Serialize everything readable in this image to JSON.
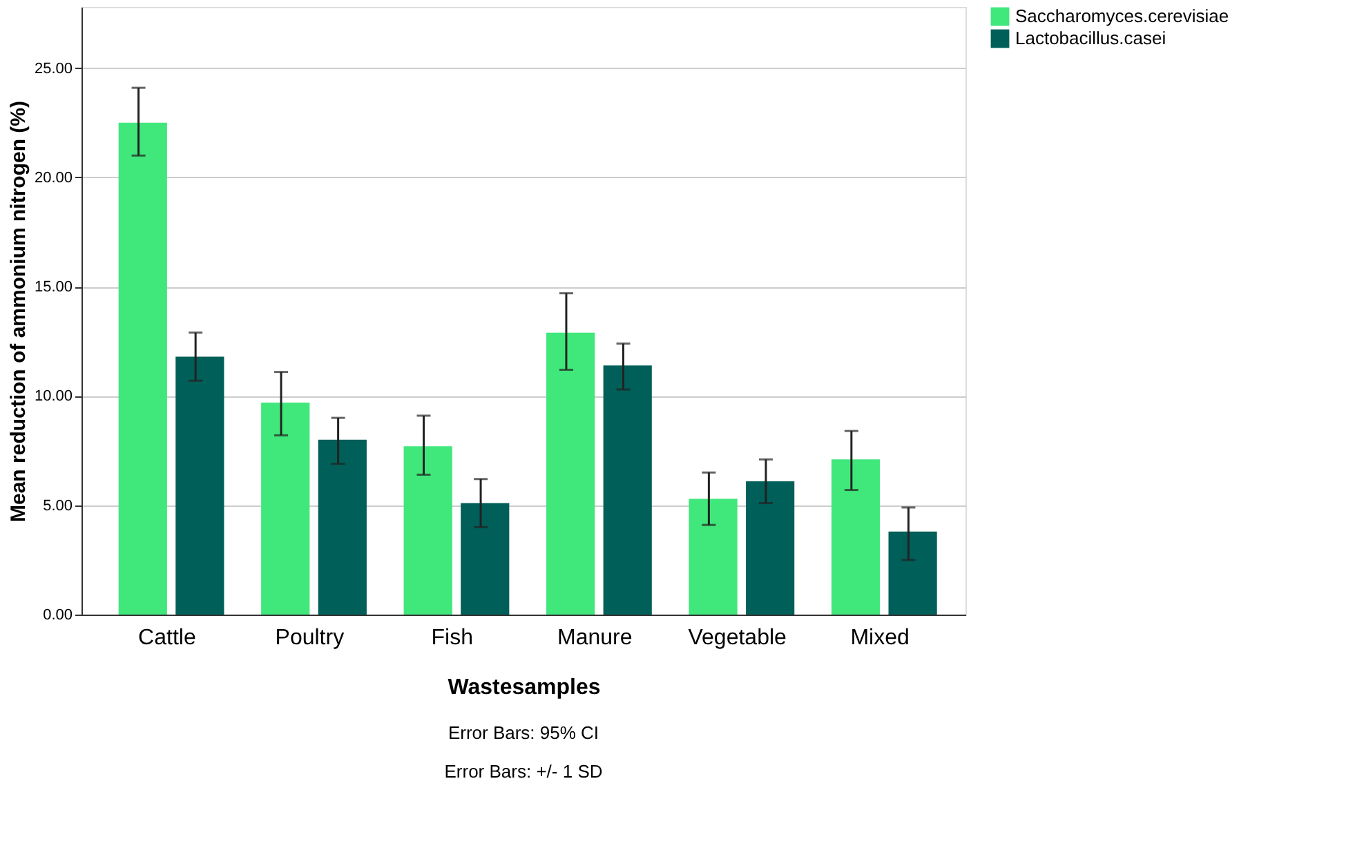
{
  "chart_data": {
    "type": "bar",
    "xlabel": "Wastesamples",
    "ylabel": "Mean reduction of ammonium nitrogen (%)",
    "categories": [
      "Cattle",
      "Poultry",
      "Fish",
      "Manure",
      "Vegetable",
      "Mixed"
    ],
    "series": [
      {
        "name": "Saccharomyces.cerevisiae",
        "color": "#40e77b",
        "values": [
          22.5,
          9.7,
          7.7,
          12.9,
          5.3,
          7.1
        ],
        "errors": [
          [
            21.0,
            24.1
          ],
          [
            8.2,
            11.1
          ],
          [
            6.4,
            9.1
          ],
          [
            11.2,
            14.7
          ],
          [
            4.1,
            6.5
          ],
          [
            5.7,
            8.4
          ]
        ]
      },
      {
        "name": "Lactobacillus.casei",
        "color": "#005f58",
        "values": [
          11.8,
          8.0,
          5.1,
          11.4,
          6.1,
          3.8
        ],
        "errors": [
          [
            10.7,
            12.9
          ],
          [
            6.9,
            9.0
          ],
          [
            4.0,
            6.2
          ],
          [
            10.3,
            12.4
          ],
          [
            5.1,
            7.1
          ],
          [
            2.5,
            4.9
          ]
        ]
      }
    ],
    "ylim": [
      0,
      27.8
    ],
    "yticks": [
      {
        "value": 0,
        "label": "0.00"
      },
      {
        "value": 5,
        "label": "5.00"
      },
      {
        "value": 10,
        "label": "10.00"
      },
      {
        "value": 15,
        "label": "15.00"
      },
      {
        "value": 20,
        "label": "20.00"
      },
      {
        "value": 25,
        "label": "25.00"
      }
    ],
    "grid": "y",
    "legend": "top right",
    "annotations": [
      "Error Bars: 95% CI",
      "Error Bars: +/- 1 SD"
    ]
  }
}
